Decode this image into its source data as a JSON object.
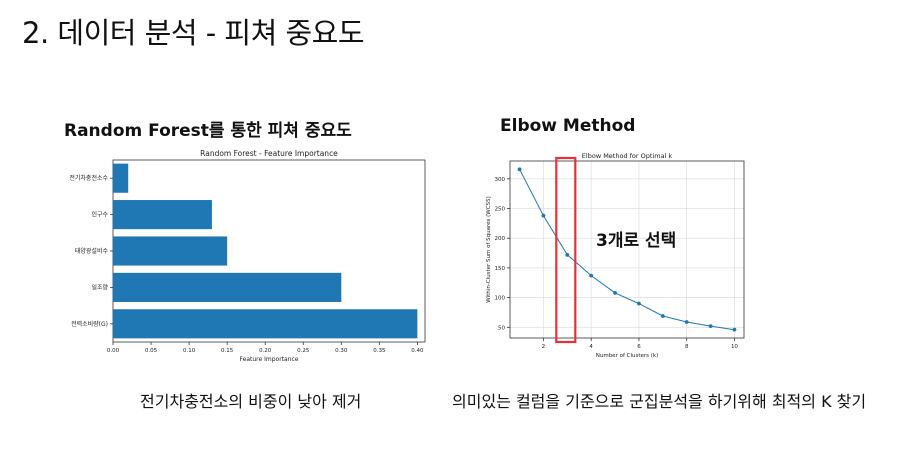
{
  "slide": {
    "title": "2. 데이터 분석 - 피쳐 중요도"
  },
  "left_panel": {
    "heading": "Random Forest를 통한 피쳐 중요도",
    "caption": "전기차충전소의 비중이 낮아 제거"
  },
  "right_panel": {
    "heading": "Elbow Method",
    "annotation": "3개로 선택",
    "caption": "의미있는 컬럼을 기준으로 군집분석을 하기위해 최적의 K 찾기"
  },
  "chart_data": [
    {
      "type": "bar",
      "orientation": "horizontal",
      "title": "Random Forest - Feature Importance",
      "xlabel": "Feature Importance",
      "ylabel": "",
      "categories": [
        "전기차충전소수",
        "인구수",
        "태양광설비수",
        "일조량",
        "전력소비량(G)"
      ],
      "values": [
        0.02,
        0.13,
        0.15,
        0.3,
        0.4
      ],
      "xlim": [
        0,
        0.41
      ],
      "xticks": [
        "0.00",
        "0.05",
        "0.10",
        "0.15",
        "0.20",
        "0.25",
        "0.30",
        "0.35",
        "0.40"
      ],
      "color": "#1f77b4",
      "grid": false
    },
    {
      "type": "line",
      "title": "Elbow Method for Optimal k",
      "xlabel": "Number of Clusters (k)",
      "ylabel": "Within-Cluster Sum of Squares (WCSS)",
      "x": [
        1,
        2,
        3,
        4,
        5,
        6,
        7,
        8,
        9,
        10
      ],
      "y": [
        316,
        238,
        172,
        137,
        108,
        90,
        69,
        59,
        52,
        46
      ],
      "xlim": [
        0.6,
        10.4
      ],
      "ylim": [
        32,
        330
      ],
      "xticks": [
        "2",
        "4",
        "6",
        "8",
        "10"
      ],
      "yticks": [
        "50",
        "100",
        "150",
        "200",
        "250",
        "300"
      ],
      "marker": "circle",
      "color": "#1f77b4",
      "grid": true,
      "highlight_k": 3,
      "highlight_color": "#e8303a"
    }
  ]
}
